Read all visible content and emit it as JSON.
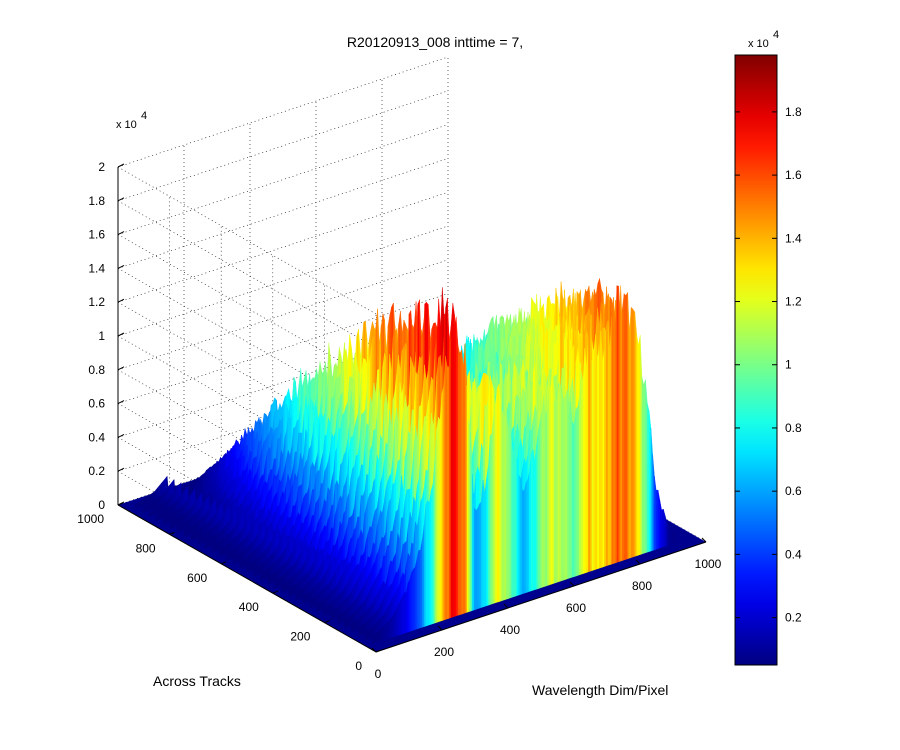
{
  "chart_data": {
    "type": "surface",
    "title": "R20120913_008 inttime = 7,",
    "xlabel": "Wavelength Dim/Pixel",
    "ylabel": "Across Tracks",
    "zlabel": "",
    "z_multiplier": {
      "base": "x 10",
      "exponent": "4"
    },
    "x_range": [
      0,
      1000
    ],
    "y_range": [
      0,
      1000
    ],
    "z_range": [
      0,
      20000
    ],
    "x_ticks": [
      "0",
      "200",
      "400",
      "600",
      "800",
      "1000"
    ],
    "y_ticks": [
      "0",
      "200",
      "400",
      "600",
      "800",
      "1000"
    ],
    "z_ticks": [
      "0",
      "0.2",
      "0.4",
      "0.6",
      "0.8",
      "1",
      "1.2",
      "1.4",
      "1.6",
      "1.8",
      "2"
    ],
    "grid": true,
    "colormap": "jet",
    "colorbar": {
      "range": [
        500,
        19800
      ],
      "ticks": [
        "0.2",
        "0.4",
        "0.6",
        "0.8",
        "1",
        "1.2",
        "1.4",
        "1.6",
        "1.8"
      ],
      "multiplier": {
        "base": "x 10",
        "exponent": "4"
      }
    },
    "surface_profile": {
      "description_x": "wavelength pixel",
      "x": [
        0,
        40,
        80,
        120,
        160,
        200,
        240,
        270,
        300,
        330,
        360,
        400,
        440,
        480,
        520,
        560,
        600,
        640,
        680,
        720,
        760,
        800,
        840,
        880,
        920,
        960,
        1000
      ],
      "peak_z": [
        400,
        600,
        1200,
        2500,
        5000,
        9000,
        15500,
        19800,
        17000,
        6500,
        8000,
        14500,
        11000,
        6800,
        9500,
        13500,
        11500,
        10800,
        15000,
        14000,
        17000,
        16000,
        12500,
        4000,
        800,
        500,
        500
      ]
    }
  }
}
